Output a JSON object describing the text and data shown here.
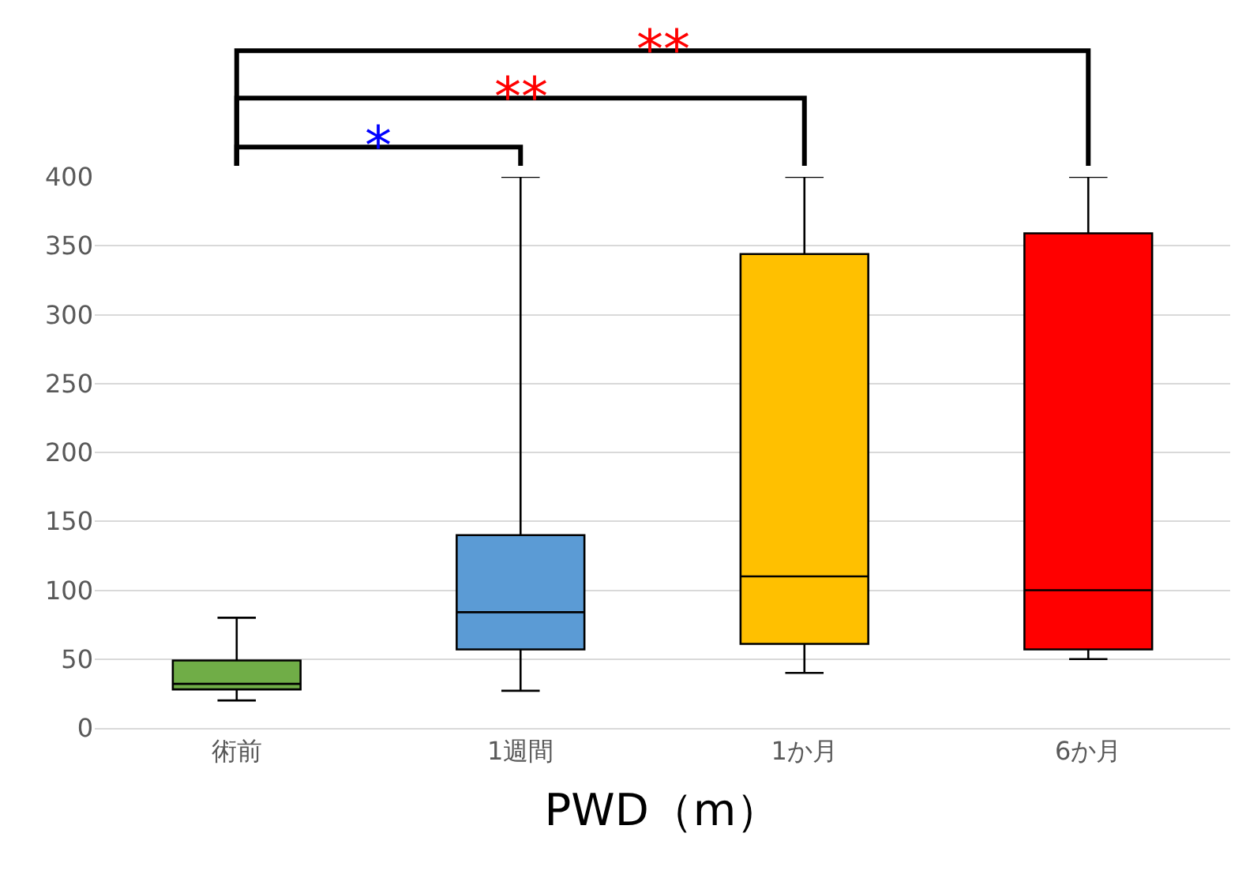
{
  "chart_data": {
    "type": "box",
    "xlabel": "PWD（m）",
    "categories": [
      "術前",
      "1週間",
      "1か月",
      "6か月"
    ],
    "colors": [
      "#70ad47",
      "#5b9bd5",
      "#ffc000",
      "#ff0000"
    ],
    "boxes": [
      {
        "low": 20,
        "q1": 28,
        "median": 32,
        "q3": 49,
        "high": 80
      },
      {
        "low": 27,
        "q1": 57,
        "median": 84,
        "q3": 140,
        "high": 400
      },
      {
        "low": 40,
        "q1": 61,
        "median": 110,
        "q3": 344,
        "high": 400
      },
      {
        "low": 50,
        "q1": 57,
        "median": 100,
        "q3": 359,
        "high": 400
      }
    ],
    "ylim": [
      0,
      400
    ],
    "yticks": [
      0,
      50,
      100,
      150,
      200,
      250,
      300,
      350,
      400
    ],
    "grid": "y",
    "legend": false,
    "annotations": [
      "*",
      "**",
      "**"
    ]
  }
}
